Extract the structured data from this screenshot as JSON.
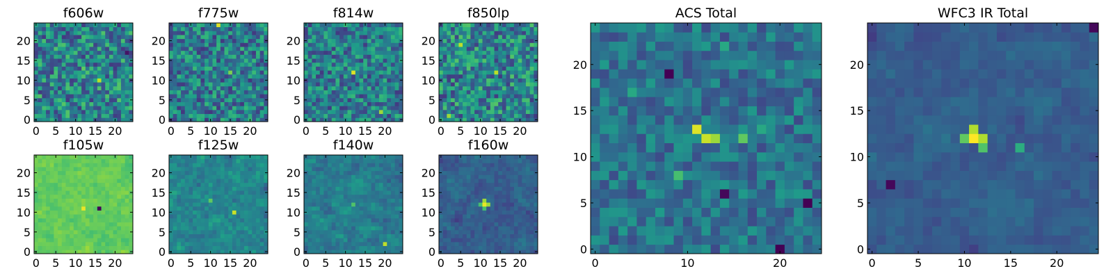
{
  "figure_title": "",
  "chart_data": [
    {
      "type": "heatmap",
      "title": "f606w",
      "xticks": [
        0,
        5,
        10,
        15,
        20
      ],
      "yticks": [
        0,
        5,
        10,
        15,
        20
      ],
      "xlim": [
        -0.5,
        24.5
      ],
      "ylim": [
        -0.5,
        24.5
      ],
      "grid_size": 25,
      "colormap": "viridis",
      "value_range": [
        0,
        1
      ],
      "baseline": 0.45,
      "noise": 0.28,
      "smooth": 0,
      "peaks": [
        {
          "x": 12,
          "y": 13,
          "v": 0.75
        },
        {
          "x": 16,
          "y": 10,
          "v": 0.9
        },
        {
          "x": 23,
          "y": 17,
          "v": 0.05
        }
      ],
      "seed": 11
    },
    {
      "type": "heatmap",
      "title": "f775w",
      "xticks": [
        0,
        5,
        10,
        15,
        20
      ],
      "yticks": [
        0,
        5,
        10,
        15,
        20
      ],
      "xlim": [
        -0.5,
        24.5
      ],
      "ylim": [
        -0.5,
        24.5
      ],
      "grid_size": 25,
      "colormap": "viridis",
      "value_range": [
        0,
        1
      ],
      "baseline": 0.42,
      "noise": 0.26,
      "smooth": 0,
      "peaks": [
        {
          "x": 12,
          "y": 24,
          "v": 0.95
        },
        {
          "x": 15,
          "y": 12,
          "v": 0.8
        }
      ],
      "seed": 23
    },
    {
      "type": "heatmap",
      "title": "f814w",
      "xticks": [
        0,
        5,
        10,
        15,
        20
      ],
      "yticks": [
        0,
        5,
        10,
        15,
        20
      ],
      "xlim": [
        -0.5,
        24.5
      ],
      "ylim": [
        -0.5,
        24.5
      ],
      "grid_size": 25,
      "colormap": "viridis",
      "value_range": [
        0,
        1
      ],
      "baseline": 0.42,
      "noise": 0.25,
      "smooth": 0,
      "peaks": [
        {
          "x": 12,
          "y": 12,
          "v": 0.95
        },
        {
          "x": 19,
          "y": 2,
          "v": 0.85
        }
      ],
      "seed": 37
    },
    {
      "type": "heatmap",
      "title": "f850lp",
      "xticks": [
        0,
        5,
        10,
        15,
        20
      ],
      "yticks": [
        0,
        5,
        10,
        15,
        20
      ],
      "xlim": [
        -0.5,
        24.5
      ],
      "ylim": [
        -0.5,
        24.5
      ],
      "grid_size": 25,
      "colormap": "viridis",
      "value_range": [
        0,
        1
      ],
      "baseline": 0.45,
      "noise": 0.28,
      "smooth": 0,
      "peaks": [
        {
          "x": 14,
          "y": 12,
          "v": 0.9
        },
        {
          "x": 5,
          "y": 19,
          "v": 0.9
        },
        {
          "x": 2,
          "y": 1,
          "v": 0.85
        }
      ],
      "seed": 41
    },
    {
      "type": "heatmap",
      "title": "f105w",
      "xticks": [
        0,
        5,
        10,
        15,
        20
      ],
      "yticks": [
        0,
        5,
        10,
        15,
        20
      ],
      "xlim": [
        -0.5,
        24.5
      ],
      "ylim": [
        -0.5,
        24.5
      ],
      "grid_size": 25,
      "colormap": "viridis",
      "value_range": [
        0,
        1
      ],
      "baseline": 0.76,
      "noise": 0.09,
      "smooth": 1,
      "peaks": [
        {
          "x": 12,
          "y": 11,
          "v": 0.97
        },
        {
          "x": 16,
          "y": 11,
          "v": 0.0
        }
      ],
      "seed": 53
    },
    {
      "type": "heatmap",
      "title": "f125w",
      "xticks": [
        0,
        5,
        10,
        15,
        20
      ],
      "yticks": [
        0,
        5,
        10,
        15,
        20
      ],
      "xlim": [
        -0.5,
        24.5
      ],
      "ylim": [
        -0.5,
        24.5
      ],
      "grid_size": 25,
      "colormap": "viridis",
      "value_range": [
        0,
        1
      ],
      "baseline": 0.45,
      "noise": 0.18,
      "smooth": 1,
      "peaks": [
        {
          "x": 16,
          "y": 10,
          "v": 0.92
        },
        {
          "x": 10,
          "y": 13,
          "v": 0.75
        }
      ],
      "seed": 61
    },
    {
      "type": "heatmap",
      "title": "f140w",
      "xticks": [
        0,
        5,
        10,
        15,
        20
      ],
      "yticks": [
        0,
        5,
        10,
        15,
        20
      ],
      "xlim": [
        -0.5,
        24.5
      ],
      "ylim": [
        -0.5,
        24.5
      ],
      "grid_size": 25,
      "colormap": "viridis",
      "value_range": [
        0,
        1
      ],
      "baseline": 0.42,
      "noise": 0.18,
      "smooth": 1,
      "peaks": [
        {
          "x": 20,
          "y": 2,
          "v": 0.9
        },
        {
          "x": 12,
          "y": 12,
          "v": 0.72
        }
      ],
      "seed": 71
    },
    {
      "type": "heatmap",
      "title": "f160w",
      "xticks": [
        0,
        5,
        10,
        15,
        20
      ],
      "yticks": [
        0,
        5,
        10,
        15,
        20
      ],
      "xlim": [
        -0.5,
        24.5
      ],
      "ylim": [
        -0.5,
        24.5
      ],
      "grid_size": 25,
      "colormap": "viridis",
      "value_range": [
        0,
        1
      ],
      "baseline": 0.3,
      "noise": 0.14,
      "smooth": 1,
      "peaks": [
        {
          "x": 11,
          "y": 12,
          "v": 0.97
        },
        {
          "x": 12,
          "y": 12,
          "v": 0.85
        },
        {
          "x": 11,
          "y": 13,
          "v": 0.85
        },
        {
          "x": 10,
          "y": 12,
          "v": 0.7
        },
        {
          "x": 11,
          "y": 11,
          "v": 0.7
        }
      ],
      "seed": 83
    },
    {
      "type": "heatmap",
      "title": "ACS Total",
      "xticks": [
        0,
        10,
        20
      ],
      "yticks": [
        0,
        5,
        10,
        15,
        20
      ],
      "xlim": [
        -0.5,
        24.5
      ],
      "ylim": [
        -0.5,
        24.5
      ],
      "grid_size": 25,
      "colormap": "viridis",
      "value_range": [
        0,
        1
      ],
      "baseline": 0.38,
      "noise": 0.16,
      "smooth": 0,
      "peaks": [
        {
          "x": 11,
          "y": 13,
          "v": 0.95
        },
        {
          "x": 12,
          "y": 12,
          "v": 0.92
        },
        {
          "x": 13,
          "y": 12,
          "v": 0.85
        },
        {
          "x": 16,
          "y": 12,
          "v": 0.75
        },
        {
          "x": 9,
          "y": 8,
          "v": 0.7
        },
        {
          "x": 18,
          "y": 13,
          "v": 0.6
        },
        {
          "x": 14,
          "y": 22,
          "v": 0.6
        },
        {
          "x": 4,
          "y": 17,
          "v": 0.6
        },
        {
          "x": 8,
          "y": 19,
          "v": 0.0
        },
        {
          "x": 23,
          "y": 5,
          "v": 0.0
        },
        {
          "x": 20,
          "y": 0,
          "v": 0.0
        },
        {
          "x": 14,
          "y": 6,
          "v": 0.02
        }
      ],
      "seed": 97
    },
    {
      "type": "heatmap",
      "title": "WFC3 IR Total",
      "xticks": [
        0,
        5,
        10,
        15,
        20
      ],
      "yticks": [
        0,
        5,
        10,
        15,
        20
      ],
      "xlim": [
        -0.5,
        24.5
      ],
      "ylim": [
        -0.5,
        24.5
      ],
      "grid_size": 25,
      "colormap": "viridis",
      "value_range": [
        0,
        1
      ],
      "baseline": 0.3,
      "noise": 0.1,
      "smooth": 1,
      "peaks": [
        {
          "x": 11,
          "y": 12,
          "v": 1.0
        },
        {
          "x": 12,
          "y": 12,
          "v": 0.88
        },
        {
          "x": 11,
          "y": 13,
          "v": 0.88
        },
        {
          "x": 10,
          "y": 12,
          "v": 0.75
        },
        {
          "x": 12,
          "y": 11,
          "v": 0.72
        },
        {
          "x": 16,
          "y": 11,
          "v": 0.62
        },
        {
          "x": 2,
          "y": 7,
          "v": 0.02
        },
        {
          "x": 24,
          "y": 24,
          "v": 0.02
        }
      ],
      "seed": 103
    }
  ]
}
